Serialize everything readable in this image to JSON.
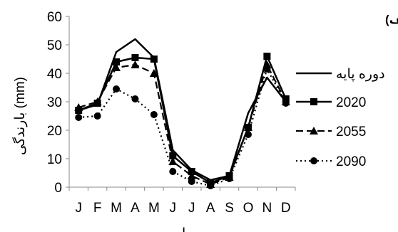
{
  "chart_data": {
    "type": "line",
    "panel_label": "(الف)",
    "xlabel": "ماه",
    "ylabel": "بارندگی (mm)",
    "ylim": [
      0,
      60
    ],
    "yticks": [
      0,
      10,
      20,
      30,
      40,
      50,
      60
    ],
    "grid": false,
    "legend_position": "right",
    "categories": [
      "J",
      "F",
      "M",
      "A",
      "M",
      "J",
      "J",
      "A",
      "S",
      "O",
      "N",
      "D"
    ],
    "series": [
      {
        "name": "دوره پایه",
        "style": "solid",
        "marker": "none",
        "values": [
          27,
          29,
          47.5,
          52,
          45.5,
          13,
          6,
          2.5,
          4,
          26,
          38.5,
          30
        ]
      },
      {
        "name": "2020",
        "style": "solid",
        "marker": "square",
        "values": [
          27,
          29.5,
          44,
          45.5,
          45,
          11,
          5.5,
          1.5,
          4,
          21,
          46,
          31
        ]
      },
      {
        "name": "2055",
        "style": "dashed",
        "marker": "triangle",
        "values": [
          28,
          30,
          42,
          43,
          40,
          9,
          4,
          1,
          3.5,
          21,
          43,
          30
        ]
      },
      {
        "name": "2090",
        "style": "dotted",
        "marker": "circle",
        "values": [
          24.5,
          25,
          34.5,
          31,
          25.5,
          5.5,
          2,
          0.5,
          3,
          18.5,
          41.5,
          29.5
        ]
      }
    ],
    "colors": {
      "line": "#000000",
      "axis": "#888888",
      "background": "#ffffff"
    }
  }
}
